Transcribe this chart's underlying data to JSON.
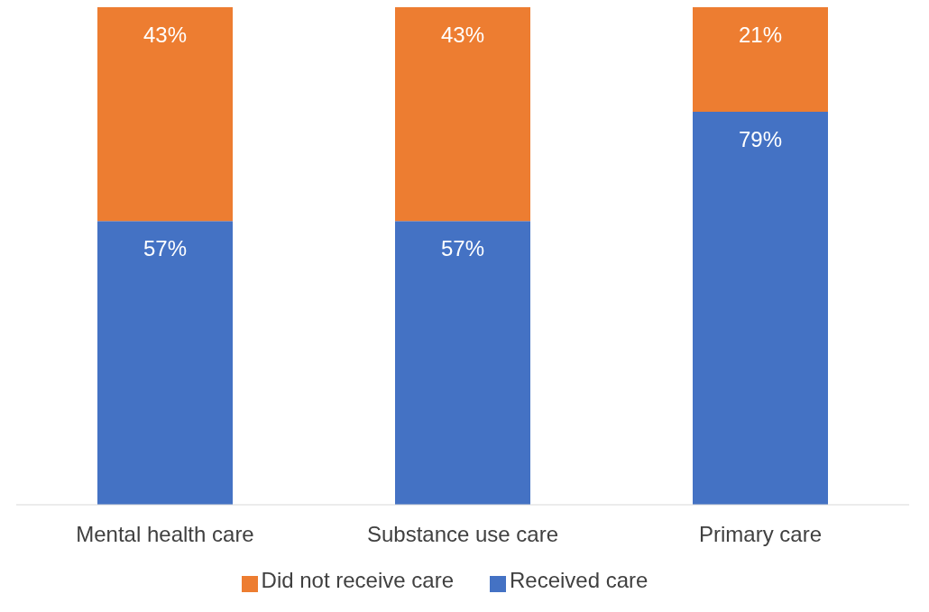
{
  "chart_data": {
    "type": "bar",
    "stacked": true,
    "categories": [
      "Mental health care",
      "Substance use care",
      "Primary care"
    ],
    "series": [
      {
        "name": "Received care",
        "color": "#4472c4",
        "values": [
          57,
          57,
          79
        ],
        "value_labels": [
          "57%",
          "57%",
          "79%"
        ]
      },
      {
        "name": "Did not receive care",
        "color": "#ed7d31",
        "values": [
          43,
          43,
          21
        ],
        "value_labels": [
          "43%",
          "43%",
          "21%"
        ]
      }
    ],
    "legend": "bottom",
    "grid": false
  }
}
